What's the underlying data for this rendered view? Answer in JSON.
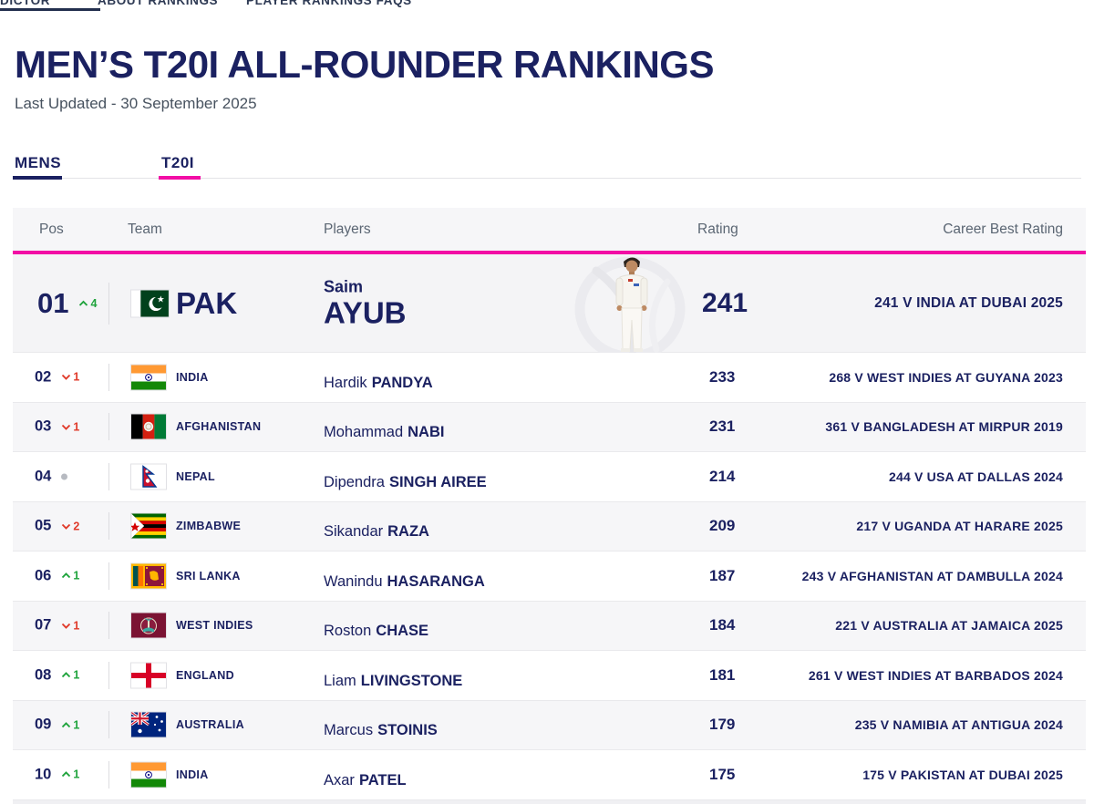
{
  "nav": {
    "items": [
      {
        "label": "DICTOR"
      },
      {
        "label": "ABOUT RANKINGS"
      },
      {
        "label": "PLAYER RANKINGS FAQS"
      }
    ]
  },
  "header": {
    "title": "MEN’S T20I ALL-ROUNDER RANKINGS",
    "last_updated": "Last Updated - 30 September 2025"
  },
  "tabs": {
    "gender": "MENS",
    "format": "T20I"
  },
  "table": {
    "columns": {
      "pos": "Pos",
      "team": "Team",
      "players": "Players",
      "rating": "Rating",
      "career_best": "Career Best Rating"
    },
    "rows": [
      {
        "featured": true,
        "pos": "01",
        "movement": "up",
        "delta": "4",
        "flag": "pak",
        "team": "PAK",
        "first": "Saim",
        "last": "AYUB",
        "rating": "241",
        "career_best": "241 V INDIA AT DUBAI 2025"
      },
      {
        "pos": "02",
        "movement": "down",
        "delta": "1",
        "flag": "ind",
        "team": "INDIA",
        "first": "Hardik",
        "last": "PANDYA",
        "rating": "233",
        "career_best": "268 V WEST INDIES AT GUYANA 2023"
      },
      {
        "pos": "03",
        "movement": "down",
        "delta": "1",
        "flag": "afg",
        "team": "AFGHANISTAN",
        "first": "Mohammad",
        "last": "NABI",
        "rating": "231",
        "career_best": "361 V BANGLADESH AT MIRPUR 2019"
      },
      {
        "pos": "04",
        "movement": "none",
        "delta": "",
        "flag": "nep",
        "team": "NEPAL",
        "first": "Dipendra",
        "last": "SINGH AIREE",
        "rating": "214",
        "career_best": "244 V USA AT DALLAS 2024"
      },
      {
        "pos": "05",
        "movement": "down",
        "delta": "2",
        "flag": "zim",
        "team": "ZIMBABWE",
        "first": "Sikandar",
        "last": "RAZA",
        "rating": "209",
        "career_best": "217 V UGANDA AT HARARE 2025"
      },
      {
        "pos": "06",
        "movement": "up",
        "delta": "1",
        "flag": "sl",
        "team": "SRI LANKA",
        "first": "Wanindu",
        "last": "HASARANGA",
        "rating": "187",
        "career_best": "243 V AFGHANISTAN AT DAMBULLA 2024"
      },
      {
        "pos": "07",
        "movement": "down",
        "delta": "1",
        "flag": "wi",
        "team": "WEST INDIES",
        "first": "Roston",
        "last": "CHASE",
        "rating": "184",
        "career_best": "221 V AUSTRALIA AT JAMAICA 2025"
      },
      {
        "pos": "08",
        "movement": "up",
        "delta": "1",
        "flag": "eng",
        "team": "ENGLAND",
        "first": "Liam",
        "last": "LIVINGSTONE",
        "rating": "181",
        "career_best": "261 V WEST INDIES AT BARBADOS 2024"
      },
      {
        "pos": "09",
        "movement": "up",
        "delta": "1",
        "flag": "aus",
        "team": "AUSTRALIA",
        "first": "Marcus",
        "last": "STOINIS",
        "rating": "179",
        "career_best": "235 V NAMIBIA AT ANTIGUA 2024"
      },
      {
        "pos": "10",
        "movement": "up",
        "delta": "1",
        "flag": "ind",
        "team": "INDIA",
        "first": "Axar",
        "last": "PATEL",
        "rating": "175",
        "career_best": "175 V PAKISTAN AT DUBAI 2025"
      }
    ]
  },
  "colors": {
    "navy": "#1b2161",
    "magenta": "#f20da5",
    "up_green": "#1fa33c",
    "down_red": "#e03a2a"
  }
}
